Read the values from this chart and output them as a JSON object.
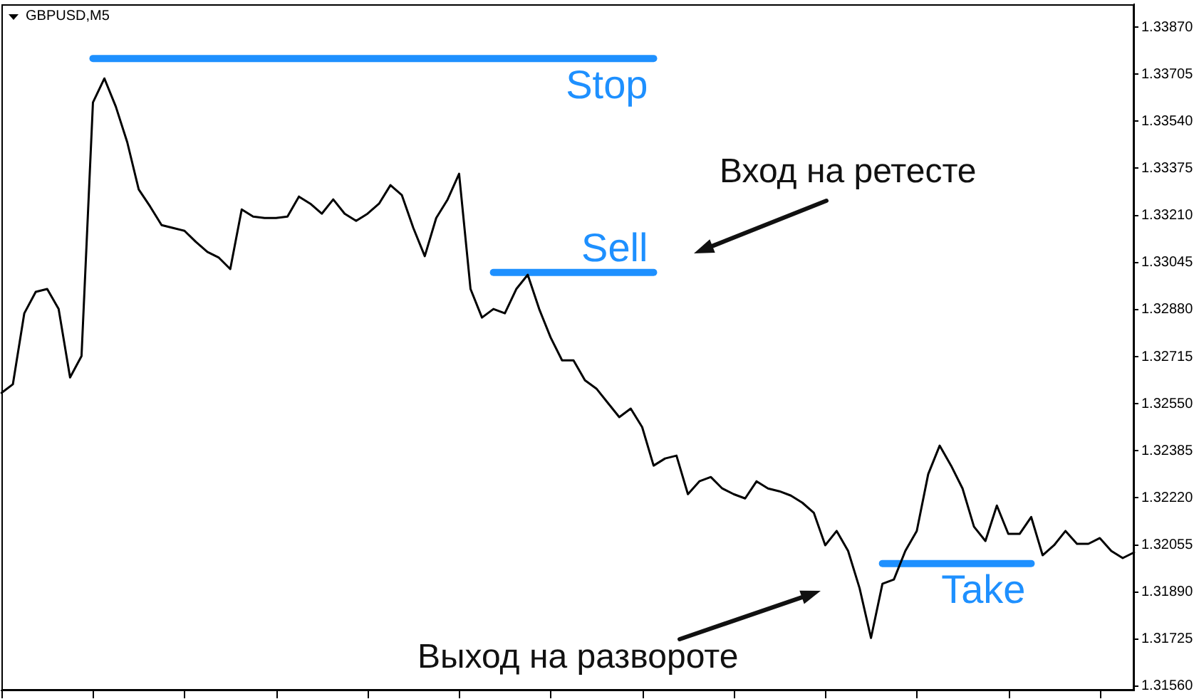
{
  "chart_data": {
    "type": "line",
    "title": "GBPUSD,M5",
    "annotations": [
      "Вход на ретесте",
      "Выход на развороте"
    ],
    "categories": [
      null,
      null,
      null,
      null,
      null,
      null,
      null,
      null,
      null,
      null,
      null,
      null,
      null,
      null,
      null,
      null,
      null,
      null,
      null,
      null,
      null,
      null,
      null,
      null,
      null,
      null,
      null,
      null,
      null,
      null,
      null,
      null,
      null,
      null,
      null,
      null,
      null,
      null,
      null,
      null,
      null,
      null,
      null,
      null,
      null,
      null,
      null,
      null,
      null,
      null,
      null,
      null,
      null,
      null,
      null,
      null,
      null,
      null,
      null,
      null,
      null,
      null,
      null,
      null,
      null,
      null,
      null,
      null,
      null,
      null,
      null,
      null,
      null,
      null,
      null,
      null,
      null,
      null,
      null,
      null,
      null,
      null,
      null,
      null,
      null,
      null,
      null,
      null,
      null,
      null,
      null,
      null,
      null,
      null,
      null,
      null,
      null,
      null,
      null,
      null
    ],
    "series": [
      {
        "color": "#000000",
        "values": [
          1.32588,
          1.32618,
          1.32867,
          1.32942,
          1.32952,
          1.32882,
          1.32642,
          1.32717,
          1.33606,
          1.3369,
          1.33591,
          1.33466,
          1.33301,
          1.33241,
          1.33176,
          1.33166,
          1.33156,
          1.33117,
          1.33082,
          1.33062,
          1.33022,
          1.33231,
          1.33206,
          1.33201,
          1.33201,
          1.33206,
          1.33276,
          1.33251,
          1.33216,
          1.33266,
          1.33216,
          1.33191,
          1.33216,
          1.33251,
          1.33316,
          1.33281,
          1.33166,
          1.33067,
          1.33201,
          1.33266,
          1.33356,
          1.32952,
          1.32852,
          1.32882,
          1.32867,
          1.32952,
          1.33002,
          1.32882,
          1.32782,
          1.32702,
          1.32702,
          1.32632,
          1.32603,
          1.32553,
          1.32503,
          1.32533,
          1.32468,
          1.32333,
          1.32358,
          1.32368,
          1.32233,
          1.32278,
          1.32293,
          1.32253,
          1.32233,
          1.32218,
          1.32278,
          1.32253,
          1.32243,
          1.32228,
          1.32203,
          1.32168,
          1.32054,
          1.32104,
          1.32034,
          1.31904,
          1.31729,
          1.31919,
          1.31934,
          1.32034,
          1.32104,
          1.32303,
          1.32403,
          1.32333,
          1.32253,
          1.32119,
          1.32069,
          1.32193,
          1.32094,
          1.32094,
          1.32153,
          1.32019,
          1.32054,
          1.32104,
          1.32059,
          1.32059,
          1.32079,
          1.32034,
          1.32009,
          1.32029
        ]
      },
      {
        "name": "Stop",
        "color": "#1e90ff",
        "values": [
          null,
          null,
          null,
          null,
          null,
          null,
          null,
          null,
          1.3376,
          1.3376,
          1.3376,
          1.3376,
          1.3376,
          1.3376,
          1.3376,
          1.3376,
          1.3376,
          1.3376,
          1.3376,
          1.3376,
          1.3376,
          1.3376,
          1.3376,
          1.3376,
          1.3376,
          1.3376,
          1.3376,
          1.3376,
          1.3376,
          1.3376,
          1.3376,
          1.3376,
          1.3376,
          1.3376,
          1.3376,
          1.3376,
          1.3376,
          1.3376,
          1.3376,
          1.3376,
          1.3376,
          1.3376,
          1.3376,
          1.3376,
          1.3376,
          1.3376,
          1.3376,
          1.3376,
          1.3376,
          1.3376,
          1.3376,
          1.3376,
          1.3376,
          1.3376,
          1.3376,
          1.3376,
          1.3376,
          1.3376,
          null,
          null,
          null,
          null,
          null,
          null,
          null,
          null,
          null,
          null,
          null,
          null,
          null,
          null,
          null,
          null,
          null,
          null,
          null,
          null,
          null,
          null,
          null,
          null,
          null,
          null,
          null,
          null,
          null,
          null,
          null,
          null,
          null,
          null,
          null,
          null,
          null,
          null,
          null,
          null,
          null,
          null
        ]
      },
      {
        "name": "Sell",
        "color": "#1e90ff",
        "values": [
          null,
          null,
          null,
          null,
          null,
          null,
          null,
          null,
          null,
          null,
          null,
          null,
          null,
          null,
          null,
          null,
          null,
          null,
          null,
          null,
          null,
          null,
          null,
          null,
          null,
          null,
          null,
          null,
          null,
          null,
          null,
          null,
          null,
          null,
          null,
          null,
          null,
          null,
          null,
          null,
          null,
          null,
          null,
          1.3301,
          1.3301,
          1.3301,
          1.3301,
          1.3301,
          1.3301,
          1.3301,
          1.3301,
          1.3301,
          1.3301,
          1.3301,
          1.3301,
          1.3301,
          1.3301,
          1.3301,
          null,
          null,
          null,
          null,
          null,
          null,
          null,
          null,
          null,
          null,
          null,
          null,
          null,
          null,
          null,
          null,
          null,
          null,
          null,
          null,
          null,
          null,
          null,
          null,
          null,
          null,
          null,
          null,
          null,
          null,
          null,
          null,
          null,
          null,
          null,
          null,
          null,
          null,
          null,
          null,
          null,
          null
        ]
      },
      {
        "name": "Take",
        "color": "#1e90ff",
        "values": [
          null,
          null,
          null,
          null,
          null,
          null,
          null,
          null,
          null,
          null,
          null,
          null,
          null,
          null,
          null,
          null,
          null,
          null,
          null,
          null,
          null,
          null,
          null,
          null,
          null,
          null,
          null,
          null,
          null,
          null,
          null,
          null,
          null,
          null,
          null,
          null,
          null,
          null,
          null,
          null,
          null,
          null,
          null,
          null,
          null,
          null,
          null,
          null,
          null,
          null,
          null,
          null,
          null,
          null,
          null,
          null,
          null,
          null,
          null,
          null,
          null,
          null,
          null,
          null,
          null,
          null,
          null,
          null,
          null,
          null,
          null,
          null,
          null,
          null,
          null,
          null,
          null,
          1.3199,
          1.3199,
          1.3199,
          1.3199,
          1.3199,
          1.3199,
          1.3199,
          1.3199,
          1.3199,
          1.3199,
          1.3199,
          1.3199,
          1.3199,
          1.3199,
          null,
          null,
          null,
          null,
          null,
          null,
          null,
          null,
          null
        ]
      }
    ],
    "ylim": [
      1.31545,
      1.3395
    ],
    "yticks": [
      {
        "value": 1.3156,
        "label": "1.31560"
      },
      {
        "value": 1.31725,
        "label": "1.31725"
      },
      {
        "value": 1.3189,
        "label": "1.31890"
      },
      {
        "value": 1.32055,
        "label": "1.32055"
      },
      {
        "value": 1.3222,
        "label": "1.32220"
      },
      {
        "value": 1.32385,
        "label": "1.32385"
      },
      {
        "value": 1.3255,
        "label": "1.32550"
      },
      {
        "value": 1.32715,
        "label": "1.32715"
      },
      {
        "value": 1.3288,
        "label": "1.32880"
      },
      {
        "value": 1.33045,
        "label": "1.33045"
      },
      {
        "value": 1.3321,
        "label": "1.33210"
      },
      {
        "value": 1.33375,
        "label": "1.33375"
      },
      {
        "value": 1.3354,
        "label": "1.33540"
      },
      {
        "value": 1.33705,
        "label": "1.33705"
      },
      {
        "value": 1.3387,
        "label": "1.33870"
      }
    ],
    "tick_labels": "y",
    "marker": "none",
    "line_style": "solid"
  }
}
